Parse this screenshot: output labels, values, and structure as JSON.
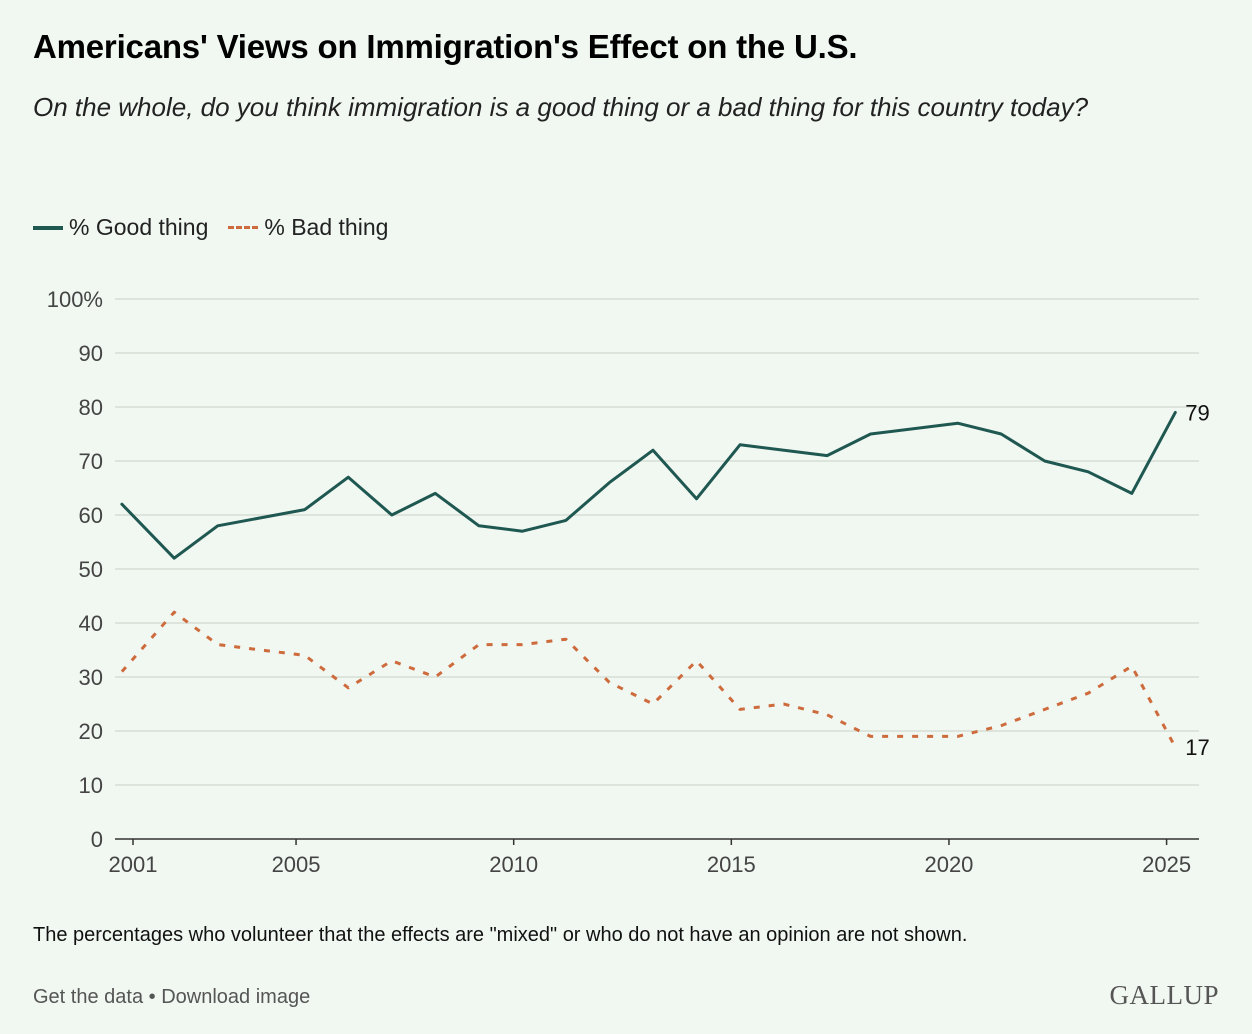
{
  "header": {
    "title": "Americans' Views on Immigration's Effect on the U.S.",
    "subtitle": "On the whole, do you think immigration is a good thing or a bad thing for this country today?"
  },
  "legend": {
    "good_label": "% Good thing",
    "bad_label": "% Bad thing"
  },
  "note": "The percentages who volunteer that the effects are \"mixed\" or who do not have an opinion are not shown.",
  "footer": {
    "get_data": "Get the data",
    "separator": "•",
    "download": "Download image",
    "brand": "GALLUP"
  },
  "colors": {
    "good": "#1f5751",
    "bad": "#cd6b3c",
    "grid": "#d6ddd6",
    "background": "#f1f7f1"
  },
  "chart_data": {
    "type": "line",
    "title": "Americans' Views on Immigration's Effect on the U.S.",
    "xlabel": "",
    "ylabel": "",
    "xlim": [
      2001,
      2025
    ],
    "ylim": [
      0,
      100
    ],
    "x_ticks": [
      "2001",
      "2005",
      "2010",
      "2015",
      "2020",
      "2025"
    ],
    "y_ticks": [
      "0",
      "10",
      "20",
      "30",
      "40",
      "50",
      "60",
      "70",
      "80",
      "90",
      "100%"
    ],
    "grid": true,
    "legend_position": "top-left",
    "series": [
      {
        "name": "% Good thing",
        "style": "solid",
        "x": [
          2001,
          2002,
          2003,
          2005,
          2006,
          2007,
          2008,
          2009,
          2010,
          2011,
          2012,
          2013,
          2014,
          2015,
          2017,
          2018,
          2020,
          2021,
          2022,
          2023,
          2024,
          2025
        ],
        "values": [
          62,
          52,
          58,
          61,
          67,
          60,
          64,
          58,
          57,
          59,
          66,
          72,
          63,
          73,
          71,
          75,
          77,
          75,
          70,
          68,
          64,
          79
        ],
        "end_label": "79"
      },
      {
        "name": "% Bad thing",
        "style": "dashed",
        "x": [
          2001,
          2002,
          2003,
          2005,
          2006,
          2007,
          2008,
          2009,
          2010,
          2011,
          2012,
          2013,
          2014,
          2015,
          2016,
          2017,
          2018,
          2020,
          2021,
          2022,
          2023,
          2024,
          2025
        ],
        "values": [
          31,
          42,
          36,
          34,
          28,
          33,
          30,
          36,
          36,
          37,
          29,
          25,
          33,
          24,
          25,
          23,
          19,
          19,
          21,
          24,
          27,
          32,
          17
        ],
        "end_label": "17"
      }
    ]
  }
}
